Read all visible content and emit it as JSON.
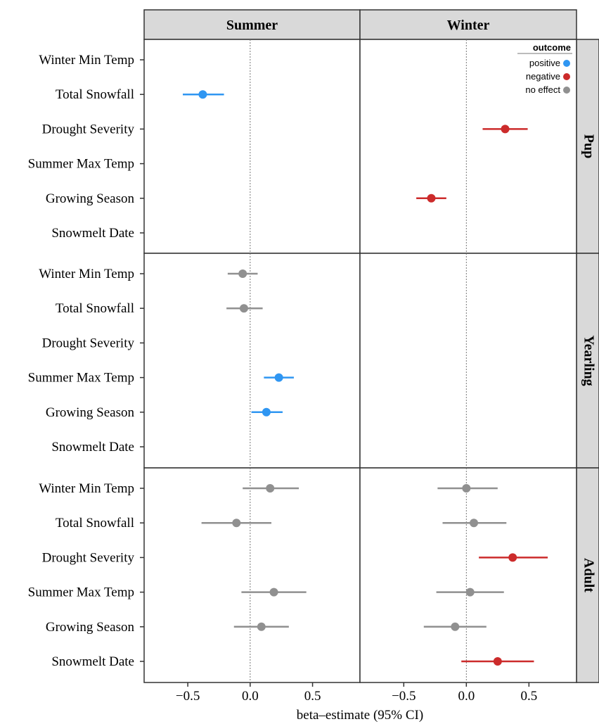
{
  "chart_data": {
    "type": "scatter",
    "subtype": "forest-plot-facet-grid",
    "columns": [
      "Summer",
      "Winter"
    ],
    "rows": [
      "Pup",
      "Yearling",
      "Adult"
    ],
    "categories": [
      "Winter Min Temp",
      "Total Snowfall",
      "Drought Severity",
      "Summer Max Temp",
      "Growing Season",
      "Snowmelt Date"
    ],
    "xlabel": "beta–estimate (95% CI)",
    "xlim": [
      -0.85,
      0.88
    ],
    "xticks": [
      -0.5,
      0.0,
      0.5
    ],
    "xtick_labels": [
      "−0.5",
      "0.0",
      "0.5"
    ],
    "reference_line": 0,
    "legend": {
      "title": "outcome",
      "placement": "top-right",
      "entries": [
        {
          "label": "positive",
          "color": "#2f96f2"
        },
        {
          "label": "negative",
          "color": "#cc2b2b"
        },
        {
          "label": "no effect",
          "color": "#909090"
        }
      ]
    },
    "points": [
      {
        "row": "Pup",
        "col": "Summer",
        "category": "Total Snowfall",
        "estimate": -0.38,
        "lo": -0.54,
        "hi": -0.21,
        "outcome": "positive"
      },
      {
        "row": "Pup",
        "col": "Winter",
        "category": "Drought Severity",
        "estimate": 0.31,
        "lo": 0.13,
        "hi": 0.49,
        "outcome": "negative"
      },
      {
        "row": "Pup",
        "col": "Winter",
        "category": "Growing Season",
        "estimate": -0.28,
        "lo": -0.4,
        "hi": -0.16,
        "outcome": "negative"
      },
      {
        "row": "Yearling",
        "col": "Summer",
        "category": "Winter Min Temp",
        "estimate": -0.06,
        "lo": -0.18,
        "hi": 0.06,
        "outcome": "no effect"
      },
      {
        "row": "Yearling",
        "col": "Summer",
        "category": "Total Snowfall",
        "estimate": -0.05,
        "lo": -0.19,
        "hi": 0.1,
        "outcome": "no effect"
      },
      {
        "row": "Yearling",
        "col": "Summer",
        "category": "Summer Max Temp",
        "estimate": 0.23,
        "lo": 0.11,
        "hi": 0.35,
        "outcome": "positive"
      },
      {
        "row": "Yearling",
        "col": "Summer",
        "category": "Growing Season",
        "estimate": 0.13,
        "lo": 0.01,
        "hi": 0.26,
        "outcome": "positive"
      },
      {
        "row": "Adult",
        "col": "Summer",
        "category": "Winter Min Temp",
        "estimate": 0.16,
        "lo": -0.06,
        "hi": 0.39,
        "outcome": "no effect"
      },
      {
        "row": "Adult",
        "col": "Summer",
        "category": "Total Snowfall",
        "estimate": -0.11,
        "lo": -0.39,
        "hi": 0.17,
        "outcome": "no effect"
      },
      {
        "row": "Adult",
        "col": "Summer",
        "category": "Summer Max Temp",
        "estimate": 0.19,
        "lo": -0.07,
        "hi": 0.45,
        "outcome": "no effect"
      },
      {
        "row": "Adult",
        "col": "Summer",
        "category": "Growing Season",
        "estimate": 0.09,
        "lo": -0.13,
        "hi": 0.31,
        "outcome": "no effect"
      },
      {
        "row": "Adult",
        "col": "Winter",
        "category": "Winter Min Temp",
        "estimate": 0.0,
        "lo": -0.23,
        "hi": 0.25,
        "outcome": "no effect"
      },
      {
        "row": "Adult",
        "col": "Winter",
        "category": "Total Snowfall",
        "estimate": 0.06,
        "lo": -0.19,
        "hi": 0.32,
        "outcome": "no effect"
      },
      {
        "row": "Adult",
        "col": "Winter",
        "category": "Drought Severity",
        "estimate": 0.37,
        "lo": 0.1,
        "hi": 0.65,
        "outcome": "negative"
      },
      {
        "row": "Adult",
        "col": "Winter",
        "category": "Summer Max Temp",
        "estimate": 0.03,
        "lo": -0.24,
        "hi": 0.3,
        "outcome": "no effect"
      },
      {
        "row": "Adult",
        "col": "Winter",
        "category": "Growing Season",
        "estimate": -0.09,
        "lo": -0.34,
        "hi": 0.16,
        "outcome": "no effect"
      },
      {
        "row": "Adult",
        "col": "Winter",
        "category": "Snowmelt Date",
        "estimate": 0.25,
        "lo": -0.04,
        "hi": 0.54,
        "outcome": "negative"
      }
    ]
  }
}
